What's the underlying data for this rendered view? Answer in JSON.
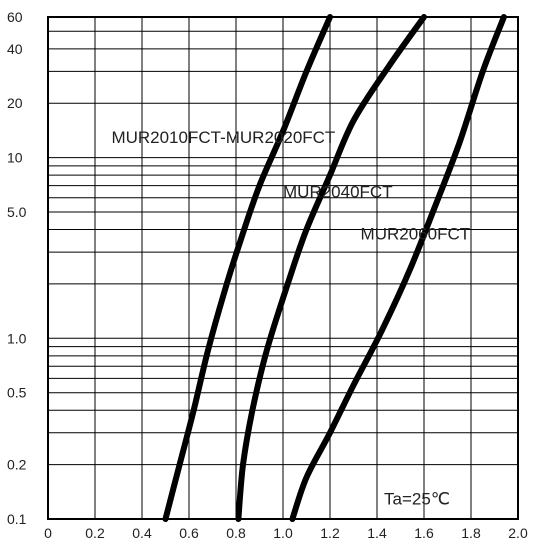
{
  "chart_data": {
    "type": "line",
    "xlabel": "",
    "ylabel": "",
    "x_scale": "linear",
    "y_scale": "log",
    "xlim": [
      0,
      2.0
    ],
    "ylim": [
      0.1,
      60
    ],
    "grid": true,
    "x_ticks": [
      "0",
      "0.2",
      "0.4",
      "0.6",
      "0.8",
      "1.0",
      "1.2",
      "1.4",
      "1.6",
      "1.8",
      "2.0"
    ],
    "x_tick_values": [
      0,
      0.2,
      0.4,
      0.6,
      0.8,
      1.0,
      1.2,
      1.4,
      1.6,
      1.8,
      2.0
    ],
    "y_ticks": [
      "0.1",
      "0.2",
      "0.5",
      "1.0",
      "5.0",
      "10",
      "20",
      "40",
      "60"
    ],
    "y_tick_values": [
      0.1,
      0.2,
      0.5,
      1.0,
      5.0,
      10,
      20,
      40,
      60
    ],
    "y_minor_gridlines": [
      0.3,
      0.4,
      0.6,
      0.7,
      0.8,
      0.9,
      2,
      3,
      4,
      6,
      7,
      8,
      9,
      30,
      50
    ],
    "series": [
      {
        "name": "MUR2010FCT-MUR2020FCT",
        "x": [
          0.5,
          0.56,
          0.62,
          0.68,
          0.75,
          0.82,
          0.9,
          1.0,
          1.1,
          1.2
        ],
        "y": [
          0.1,
          0.2,
          0.4,
          0.85,
          1.8,
          3.5,
          7,
          14,
          30,
          60
        ]
      },
      {
        "name": "MUR2040FCT",
        "x": [
          0.81,
          0.83,
          0.87,
          0.93,
          1.02,
          1.1,
          1.2,
          1.3,
          1.45,
          1.6
        ],
        "y": [
          0.1,
          0.2,
          0.4,
          0.85,
          2,
          4,
          8,
          16,
          32,
          60
        ]
      },
      {
        "name": "MUR2060FCT",
        "x": [
          1.04,
          1.1,
          1.2,
          1.3,
          1.42,
          1.54,
          1.65,
          1.75,
          1.85,
          1.94
        ],
        "y": [
          0.1,
          0.17,
          0.3,
          0.55,
          1.1,
          2.4,
          5.5,
          12,
          30,
          60
        ]
      }
    ],
    "annotations": [
      {
        "text": "MUR2010FCT-MUR2020FCT",
        "x": 0.27,
        "y": 13
      },
      {
        "text": "MUR2040FCT",
        "x": 1.0,
        "y": 6.5
      },
      {
        "text": "MUR2060FCT",
        "x": 1.33,
        "y": 3.8
      },
      {
        "text": "Ta=25℃",
        "x": 1.43,
        "y": 0.13
      }
    ]
  }
}
